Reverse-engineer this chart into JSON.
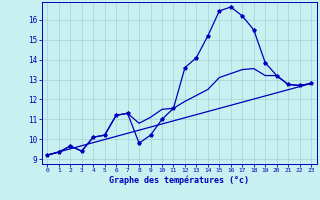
{
  "xlabel": "Graphe des températures (°c)",
  "bg_color": "#c8f0f0",
  "grid_color": "#a8d8d8",
  "line_color": "#0000bb",
  "axis_bottom_color": "#2020aa",
  "ylim": [
    8.75,
    16.9
  ],
  "xlim": [
    -0.5,
    23.5
  ],
  "yticks": [
    9,
    10,
    11,
    12,
    13,
    14,
    15,
    16
  ],
  "xticks": [
    0,
    1,
    2,
    3,
    4,
    5,
    6,
    7,
    8,
    9,
    10,
    11,
    12,
    13,
    14,
    15,
    16,
    17,
    18,
    19,
    20,
    21,
    22,
    23
  ],
  "line1_x": [
    0,
    1,
    2,
    3,
    4,
    5,
    6,
    7,
    8,
    9,
    10,
    11,
    12,
    13,
    14,
    15,
    16,
    17,
    18,
    19,
    20,
    21,
    22,
    23
  ],
  "line1_y": [
    9.2,
    9.35,
    9.65,
    9.4,
    10.1,
    10.2,
    11.2,
    11.3,
    9.8,
    10.2,
    11.0,
    11.55,
    13.6,
    14.1,
    15.2,
    16.45,
    16.65,
    16.2,
    15.5,
    13.85,
    13.2,
    12.75,
    12.7,
    12.8
  ],
  "line2_x": [
    0,
    1,
    2,
    3,
    4,
    5,
    6,
    7,
    8,
    9,
    10,
    11,
    12,
    13,
    14,
    15,
    16,
    17,
    18,
    19,
    20,
    21,
    22,
    23
  ],
  "line2_y": [
    9.2,
    9.35,
    9.65,
    9.4,
    10.1,
    10.2,
    11.2,
    11.3,
    10.8,
    11.1,
    11.5,
    11.55,
    11.9,
    12.2,
    12.5,
    13.1,
    13.3,
    13.5,
    13.55,
    13.2,
    13.2,
    12.75,
    12.7,
    12.8
  ],
  "line3_x": [
    0,
    23
  ],
  "line3_y": [
    9.2,
    12.8
  ]
}
